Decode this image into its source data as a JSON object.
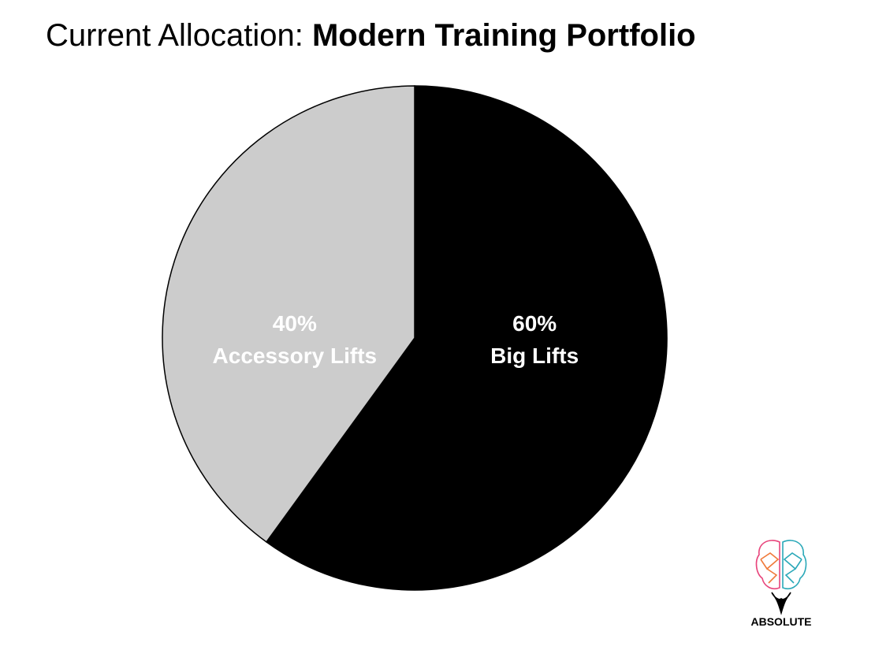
{
  "chart_data": {
    "type": "pie",
    "title_lead": "Current Allocation:",
    "title": "Modern Training Portfolio",
    "categories": [
      "Big Lifts",
      "Accessory Lifts"
    ],
    "values": [
      60,
      40
    ],
    "value_labels": [
      "60%",
      "40%"
    ],
    "colors": [
      "#000000",
      "#cccccc"
    ]
  },
  "logo": {
    "text": "ABSOLUTE"
  }
}
